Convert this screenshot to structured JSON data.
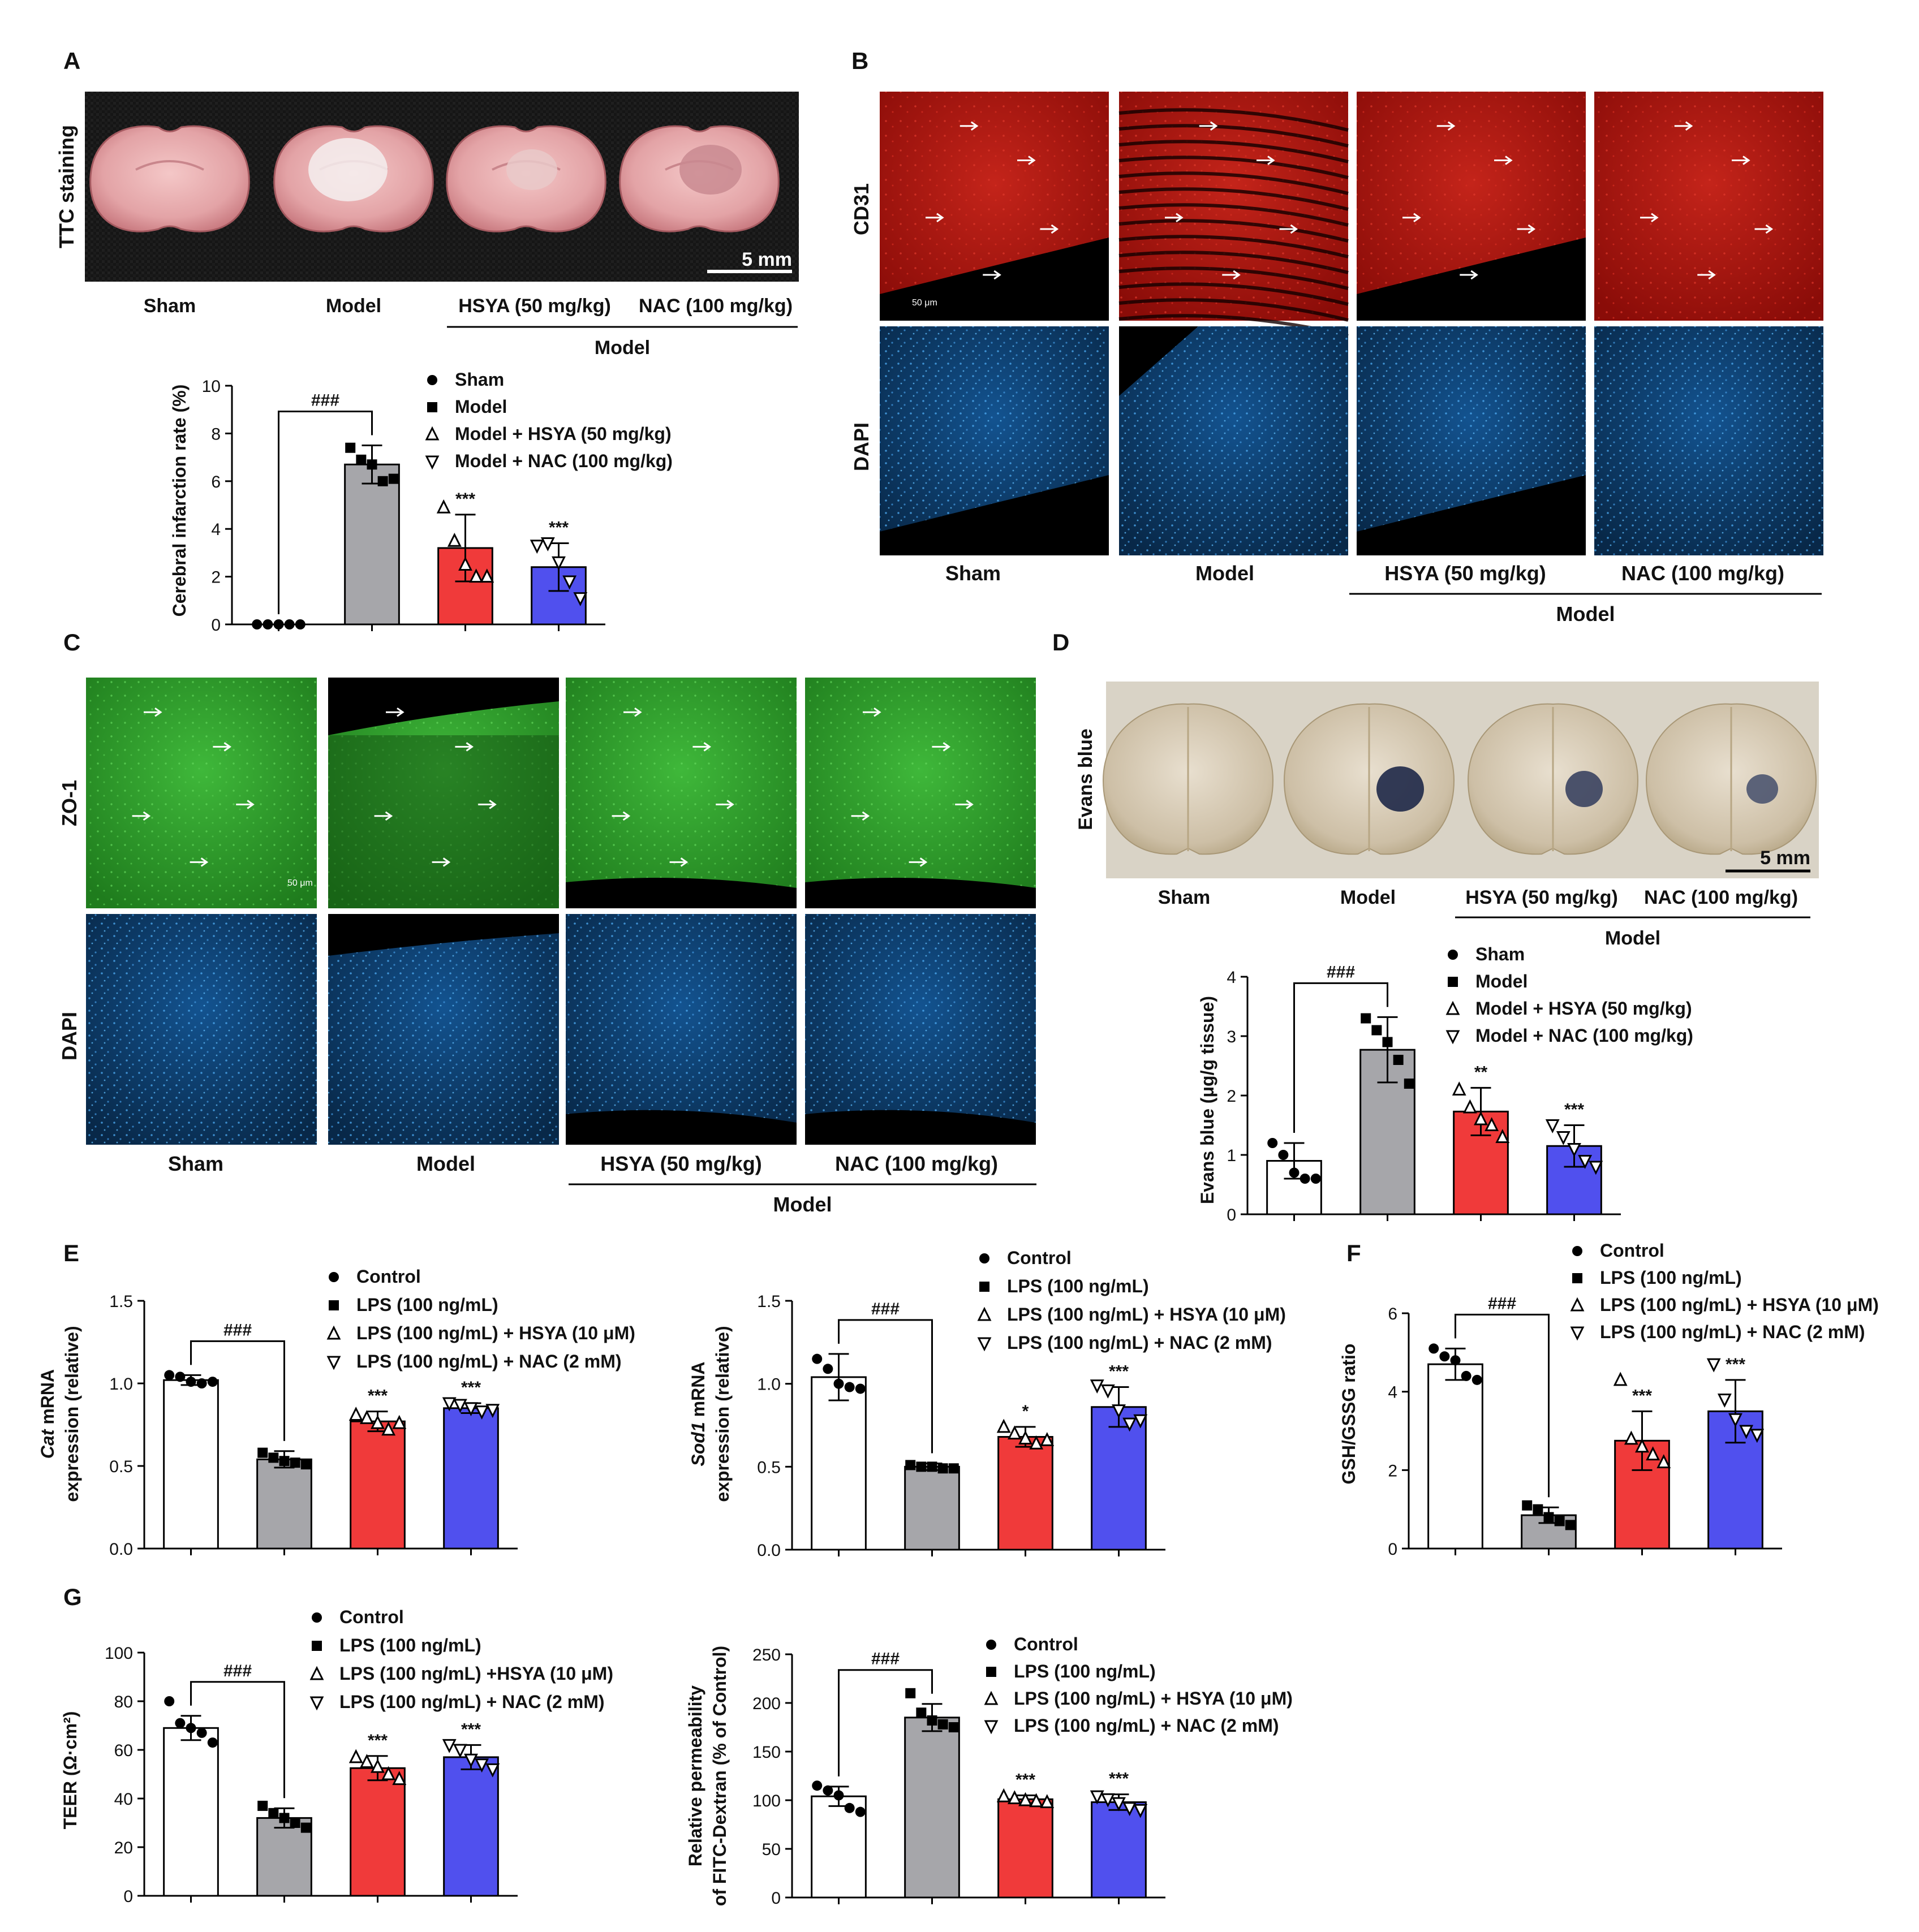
{
  "colors": {
    "sham": "#ffffff",
    "model": "#a6a6aa",
    "hsya": "#f03a3a",
    "nac": "#5050ee",
    "cd31": "#b0140e",
    "zo1": "#2fa52b",
    "dapi": "#0c3a6a",
    "ttc_bg": "#151515",
    "evans_bg": "#d9d3c6"
  },
  "A": {
    "letter": "A",
    "photo_label": "TTC staining",
    "scale": "5 mm",
    "groups": [
      "Sham",
      "Model",
      "HSYA (50 mg/kg)",
      "NAC (100 mg/kg)"
    ],
    "bracket": "Model",
    "chart_data": {
      "type": "bar",
      "ylabel": "Cerebral infarction rate (%)",
      "ylim": [
        0,
        10
      ],
      "yticks": [
        0,
        2,
        4,
        6,
        8,
        10
      ],
      "legend": [
        "Sham",
        "Model",
        "Model + HSYA (50 mg/kg)",
        "Model + NAC (100 mg/kg)"
      ],
      "values": [
        0,
        6.7,
        3.2,
        2.4
      ],
      "errors": [
        0,
        0.8,
        1.4,
        1.0
      ],
      "points": [
        [
          0,
          0,
          0,
          0,
          0
        ],
        [
          7.4,
          6.9,
          6.7,
          6.0,
          6.1
        ],
        [
          4.9,
          3.5,
          2.5,
          2.0,
          2.0
        ],
        [
          3.3,
          3.4,
          2.6,
          1.8,
          1.1
        ]
      ],
      "stars": [
        "",
        "",
        "***",
        "***"
      ],
      "hash": "###"
    }
  },
  "B": {
    "letter": "B",
    "rows": [
      "CD31",
      "DAPI"
    ],
    "groups": [
      "Sham",
      "Model",
      "HSYA (50 mg/kg)",
      "NAC (100 mg/kg)"
    ],
    "bracket": "Model",
    "scale": "50 μm"
  },
  "C": {
    "letter": "C",
    "rows": [
      "ZO-1",
      "DAPI"
    ],
    "groups": [
      "Sham",
      "Model",
      "HSYA (50 mg/kg)",
      "NAC (100 mg/kg)"
    ],
    "bracket": "Model",
    "scale": "50 μm"
  },
  "D": {
    "letter": "D",
    "photo_label": "Evans blue",
    "scale": "5 mm",
    "groups": [
      "Sham",
      "Model",
      "HSYA (50 mg/kg)",
      "NAC (100 mg/kg)"
    ],
    "bracket": "Model",
    "chart_data": {
      "type": "bar",
      "ylabel": "Evans blue (μg/g tissue)",
      "ylim": [
        0,
        4
      ],
      "yticks": [
        0,
        1,
        2,
        3,
        4
      ],
      "legend": [
        "Sham",
        "Model",
        "Model + HSYA (50 mg/kg)",
        "Model + NAC (100 mg/kg)"
      ],
      "values": [
        0.9,
        2.77,
        1.73,
        1.15
      ],
      "errors": [
        0.3,
        0.55,
        0.4,
        0.35
      ],
      "points": [
        [
          1.2,
          1.0,
          0.7,
          0.6,
          0.6
        ],
        [
          3.3,
          3.1,
          2.9,
          2.6,
          2.2
        ],
        [
          2.1,
          1.8,
          1.6,
          1.5,
          1.3
        ],
        [
          1.5,
          1.3,
          1.1,
          0.9,
          0.8
        ]
      ],
      "stars": [
        "",
        "",
        "**",
        "***"
      ],
      "hash": "###"
    }
  },
  "E": {
    "letter": "E",
    "cat": {
      "type": "bar",
      "ylabel_italic": "Cat",
      "ylabel_rest": " mRNA",
      "ylabel2": "expression (relative)",
      "ylim": [
        0,
        1.5
      ],
      "yticks": [
        "0.0",
        "0.5",
        "1.0",
        "1.5"
      ],
      "legend": [
        "Control",
        "LPS (100 ng/mL)",
        "LPS (100 ng/mL) + HSYA (10 μM)",
        "LPS (100 ng/mL) + NAC (2 mM)"
      ],
      "values": [
        1.02,
        0.54,
        0.77,
        0.85
      ],
      "errors": [
        0.03,
        0.05,
        0.06,
        0.03
      ],
      "points": [
        [
          1.05,
          1.04,
          1.01,
          1.0,
          1.01
        ],
        [
          0.58,
          0.55,
          0.53,
          0.52,
          0.51
        ],
        [
          0.81,
          0.79,
          0.76,
          0.72,
          0.76
        ],
        [
          0.88,
          0.87,
          0.85,
          0.83,
          0.84
        ]
      ],
      "stars": [
        "",
        "",
        "***",
        "***"
      ],
      "hash": "###"
    },
    "sod1": {
      "type": "bar",
      "ylabel_italic": "Sod1",
      "ylabel_rest": " mRNA",
      "ylabel2": "expression (relative)",
      "ylim": [
        0,
        1.5
      ],
      "yticks": [
        "0.0",
        "0.5",
        "1.0",
        "1.5"
      ],
      "legend": [
        "Control",
        "LPS (100 ng/mL)",
        "LPS (100 ng/mL) + HSYA (10 μM)",
        "LPS (100 ng/mL) + NAC (2 mM)"
      ],
      "values": [
        1.04,
        0.5,
        0.68,
        0.86
      ],
      "errors": [
        0.14,
        0.02,
        0.06,
        0.12
      ],
      "points": [
        [
          1.15,
          1.09,
          1.0,
          0.98,
          0.97
        ],
        [
          0.51,
          0.5,
          0.5,
          0.49,
          0.49
        ],
        [
          0.74,
          0.7,
          0.67,
          0.64,
          0.66
        ],
        [
          0.99,
          0.96,
          0.84,
          0.76,
          0.78
        ]
      ],
      "stars": [
        "",
        "",
        "*",
        "***"
      ],
      "hash": "###"
    }
  },
  "F": {
    "letter": "F",
    "chart_data": {
      "type": "bar",
      "ylabel": "GSH/GSSG ratio",
      "ylim": [
        0,
        6
      ],
      "yticks": [
        0,
        2,
        4,
        6
      ],
      "legend": [
        "Control",
        "LPS (100 ng/mL)",
        "LPS (100 ng/mL) + HSYA (10 μM)",
        "LPS (100 ng/mL) + NAC (2 mM)"
      ],
      "values": [
        4.7,
        0.85,
        2.75,
        3.5
      ],
      "errors": [
        0.4,
        0.2,
        0.75,
        0.8
      ],
      "points": [
        [
          5.1,
          4.9,
          4.8,
          4.4,
          4.3
        ],
        [
          1.1,
          1.0,
          0.8,
          0.7,
          0.6
        ],
        [
          4.3,
          2.8,
          2.6,
          2.4,
          2.2
        ],
        [
          4.7,
          3.8,
          3.3,
          3.0,
          2.9
        ]
      ],
      "stars": [
        "",
        "",
        "***",
        "***"
      ],
      "hash": "###"
    }
  },
  "G": {
    "letter": "G",
    "teer": {
      "type": "bar",
      "ylabel": "TEER (Ω·cm²)",
      "ylim": [
        0,
        100
      ],
      "yticks": [
        0,
        20,
        40,
        60,
        80,
        100
      ],
      "legend": [
        "Control",
        "LPS (100 ng/mL)",
        "LPS (100 ng/mL) +HSYA (10 μM)",
        "LPS (100 ng/mL) + NAC (2 mM)"
      ],
      "values": [
        69,
        32,
        52.5,
        57
      ],
      "errors": [
        5,
        4,
        5,
        5
      ],
      "points": [
        [
          80,
          71,
          69,
          67,
          63
        ],
        [
          37,
          34,
          32,
          30,
          28
        ],
        [
          57,
          55,
          53,
          50,
          48
        ],
        [
          62,
          60,
          56,
          54,
          52
        ]
      ],
      "stars": [
        "",
        "",
        "***",
        "***"
      ],
      "hash": "###"
    },
    "fitc": {
      "type": "bar",
      "ylabel": "Relative permeability",
      "ylabel2": "of FITC-Dextran (% of Control)",
      "ylim": [
        0,
        250
      ],
      "yticks": [
        0,
        50,
        100,
        150,
        200,
        250
      ],
      "legend": [
        "Control",
        "LPS (100 ng/mL)",
        "LPS (100 ng/mL) + HSYA (10 μM)",
        "LPS (100 ng/mL) + NAC (2 mM)"
      ],
      "values": [
        104,
        185,
        101,
        98
      ],
      "errors": [
        10,
        14,
        4,
        8
      ],
      "points": [
        [
          115,
          110,
          105,
          92,
          88
        ],
        [
          210,
          190,
          182,
          178,
          175
        ],
        [
          104,
          102,
          100,
          99,
          98
        ],
        [
          104,
          101,
          97,
          92,
          90
        ]
      ],
      "stars": [
        "",
        "",
        "***",
        "***"
      ],
      "hash": "###"
    }
  }
}
